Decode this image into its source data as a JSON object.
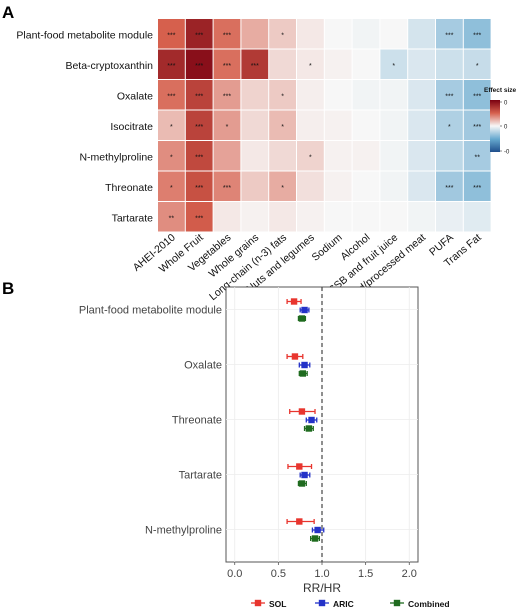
{
  "panel_labels": [
    "A",
    "B"
  ],
  "chart_data": [
    {
      "type": "heatmap",
      "panel": "A",
      "rows": [
        "Plant-food metabolite module",
        "Beta-cryptoxanthin",
        "Oxalate",
        "Isocitrate",
        "N-methylproline",
        "Threonate",
        "Tartarate"
      ],
      "columns": [
        "AHEI-2010",
        "Whole Fruit",
        "Vegetables",
        "Whole grains",
        "Long-chain (n-3) fats",
        "Nuts and legumes",
        "Sodium",
        "Alcohol",
        "SSB and fruit juice",
        "Red/processed meat",
        "PUFA",
        "Trans Fat"
      ],
      "values": [
        [
          0.5,
          0.82,
          0.45,
          0.25,
          0.15,
          0.05,
          0.0,
          -0.02,
          0.0,
          -0.12,
          -0.28,
          -0.36
        ],
        [
          0.78,
          0.92,
          0.45,
          0.7,
          0.1,
          0.05,
          0.02,
          0.0,
          -0.15,
          -0.1,
          -0.15,
          -0.17
        ],
        [
          0.45,
          0.65,
          0.3,
          0.12,
          0.15,
          0.03,
          0.0,
          -0.02,
          -0.02,
          -0.1,
          -0.28,
          -0.36
        ],
        [
          0.2,
          0.65,
          0.3,
          0.1,
          0.2,
          0.03,
          0.02,
          0.0,
          -0.02,
          -0.1,
          -0.25,
          -0.3
        ],
        [
          0.35,
          0.62,
          0.28,
          0.05,
          0.1,
          0.12,
          0.02,
          0.02,
          -0.02,
          -0.1,
          -0.2,
          -0.28
        ],
        [
          0.4,
          0.58,
          0.38,
          0.15,
          0.25,
          0.08,
          0.02,
          0.0,
          -0.02,
          -0.1,
          -0.3,
          -0.36
        ],
        [
          0.35,
          0.52,
          0.05,
          0.02,
          0.05,
          0.02,
          0.0,
          0.0,
          0.0,
          -0.02,
          -0.05,
          -0.08
        ]
      ],
      "annotations": [
        [
          "***",
          "***",
          "***",
          "",
          "*",
          "",
          "",
          "",
          "",
          "",
          "***",
          "***"
        ],
        [
          "***",
          "***",
          "***",
          "***",
          "",
          "*",
          "",
          "",
          "*",
          "",
          "",
          "*"
        ],
        [
          "***",
          "***",
          "***",
          "",
          "*",
          "",
          "",
          "",
          "",
          "",
          "***",
          "***"
        ],
        [
          "*",
          "***",
          "*",
          "",
          "*",
          "",
          "",
          "",
          "",
          "",
          "*",
          "***"
        ],
        [
          "*",
          "***",
          "",
          "",
          "",
          "*",
          "",
          "",
          "",
          "",
          "",
          "**"
        ],
        [
          "*",
          "***",
          "***",
          "",
          "*",
          "",
          "",
          "",
          "",
          "",
          "***",
          "***"
        ],
        [
          "**",
          "***",
          "",
          "",
          "",
          "",
          "",
          "",
          "",
          "",
          "",
          ""
        ]
      ],
      "legend": {
        "title": "Effect size",
        "ticks": [
          "0",
          "0",
          "-0"
        ],
        "range": [
          -1,
          1
        ],
        "low_color": "#1f4e8c",
        "mid_color": "#f7f7f7",
        "high_color": "#7a0010"
      }
    },
    {
      "type": "forest",
      "panel": "B",
      "categories": [
        "Plant-food metabolite module",
        "Oxalate",
        "Threonate",
        "Tartarate",
        "N-methylproline"
      ],
      "xlabel": "RR/HR",
      "xlim": [
        -0.1,
        2.1
      ],
      "xticks": [
        "0.0",
        "0.5",
        "1.0",
        "1.5",
        "2.0"
      ],
      "reference_line": 1.0,
      "series": [
        {
          "name": "SOL",
          "color": "#e8352e",
          "estimates": [
            0.68,
            0.69,
            0.77,
            0.74,
            0.74
          ],
          "lower": [
            0.6,
            0.6,
            0.63,
            0.61,
            0.6
          ],
          "upper": [
            0.76,
            0.78,
            0.92,
            0.88,
            0.91
          ]
        },
        {
          "name": "ARIC",
          "color": "#2432c8",
          "estimates": [
            0.8,
            0.8,
            0.88,
            0.8,
            0.95
          ],
          "lower": [
            0.75,
            0.74,
            0.82,
            0.75,
            0.89
          ],
          "upper": [
            0.85,
            0.86,
            0.94,
            0.86,
            1.02
          ]
        },
        {
          "name": "Combined",
          "color": "#1f6b1f",
          "estimates": [
            0.77,
            0.78,
            0.85,
            0.77,
            0.92
          ],
          "lower": [
            0.73,
            0.74,
            0.8,
            0.73,
            0.87
          ],
          "upper": [
            0.81,
            0.83,
            0.9,
            0.82,
            0.97
          ]
        }
      ],
      "legend_position": "bottom"
    }
  ]
}
